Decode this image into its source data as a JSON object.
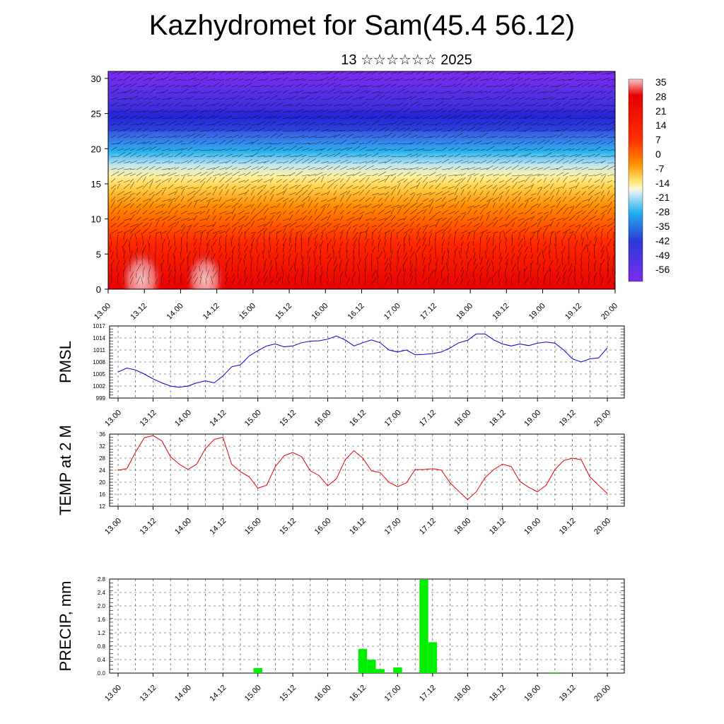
{
  "header": {
    "title": "Kazhydromet for Sam(45.4 56.12)",
    "subtitle": "13 ☆☆☆☆☆☆ 2025"
  },
  "time_labels": [
    "13.00",
    "13.12",
    "14.00",
    "14.12",
    "15.00",
    "15.12",
    "16.00",
    "16.12",
    "17.00",
    "17.12",
    "18.00",
    "18.12",
    "19.00",
    "19.12",
    "20.00"
  ],
  "chart_data": [
    {
      "type": "heatmap",
      "title": "",
      "x_categories": [
        "13.00",
        "13.12",
        "14.00",
        "14.12",
        "15.00",
        "15.12",
        "16.00",
        "16.12",
        "17.00",
        "17.12",
        "18.00",
        "18.12",
        "19.00",
        "19.12",
        "20.00"
      ],
      "yticks": [
        0,
        5,
        10,
        15,
        20,
        25,
        30
      ],
      "ylim": [
        0,
        31
      ],
      "colorbar_labels": [
        "35",
        "28",
        "21",
        "14",
        "7",
        "0",
        "-7",
        "-14",
        "-21",
        "-28",
        "-35",
        "-42",
        "-49",
        "-56"
      ],
      "colors": {
        "hot": "#f8b6b6",
        "red": "#e30000",
        "orange": "#ff7a00",
        "yellow": "#ffe36b",
        "lightblue": "#b9e2f3",
        "cyan": "#20b2f0",
        "blue": "#2a3bd6",
        "purple": "#7a2af0"
      },
      "overlay": "wind barbs"
    },
    {
      "type": "line",
      "ylabel": "PMSL",
      "yticks": [
        999,
        1002,
        1005,
        1008,
        1011,
        1014,
        1017
      ],
      "ylim": [
        999,
        1017
      ],
      "color": "#0000cc",
      "x": [
        0,
        0.25,
        0.5,
        0.75,
        1,
        1.25,
        1.5,
        1.75,
        2,
        2.25,
        2.5,
        2.75,
        3,
        3.25,
        3.5,
        3.75,
        4,
        4.25,
        4.5,
        4.75,
        5,
        5.25,
        5.5,
        5.75,
        6,
        6.25,
        6.5,
        6.75,
        7,
        7.25,
        7.5,
        7.75,
        8,
        8.25,
        8.5,
        8.75,
        9,
        9.25,
        9.5,
        9.75,
        10,
        10.25,
        10.5,
        10.75,
        11,
        11.25,
        11.5,
        11.75,
        12,
        12.25,
        12.5,
        12.75,
        13,
        13.25,
        13.5,
        13.75,
        14
      ],
      "values": [
        1005.5,
        1006.5,
        1006,
        1005,
        1003.8,
        1002.8,
        1002,
        1001.7,
        1002,
        1002.8,
        1003.3,
        1002.8,
        1004.5,
        1006.8,
        1007.3,
        1009.5,
        1010.8,
        1012,
        1012.5,
        1011.8,
        1012,
        1012.8,
        1013.2,
        1013.3,
        1013.7,
        1014.5,
        1013.5,
        1012,
        1012.8,
        1013.5,
        1012.8,
        1011,
        1010.5,
        1011,
        1009.8,
        1009.9,
        1010.1,
        1010.5,
        1011.5,
        1012.8,
        1013.4,
        1015,
        1015,
        1013.5,
        1012.5,
        1012,
        1012.5,
        1012.1,
        1012.7,
        1013,
        1012.7,
        1011,
        1008.8,
        1008,
        1008.8,
        1009,
        1011.5
      ]
    },
    {
      "type": "line",
      "ylabel": "TEMP at 2 M",
      "yticks": [
        12,
        16,
        20,
        24,
        28,
        32,
        36
      ],
      "ylim": [
        12,
        36
      ],
      "color": "#e60000",
      "x": [
        0,
        0.25,
        0.5,
        0.75,
        1,
        1.25,
        1.5,
        1.75,
        2,
        2.25,
        2.5,
        2.75,
        3,
        3.25,
        3.5,
        3.75,
        4,
        4.25,
        4.5,
        4.75,
        5,
        5.25,
        5.5,
        5.75,
        6,
        6.25,
        6.5,
        6.75,
        7,
        7.25,
        7.5,
        7.75,
        8,
        8.25,
        8.5,
        8.75,
        9,
        9.25,
        9.5,
        9.75,
        10,
        10.25,
        10.5,
        10.75,
        11,
        11.25,
        11.5,
        11.75,
        12,
        12.25,
        12.5,
        12.75,
        13,
        13.25,
        13.5,
        13.75,
        14
      ],
      "values": [
        24,
        24.5,
        30,
        34.8,
        35.5,
        33.8,
        28.5,
        26,
        24.2,
        26,
        31.2,
        34.2,
        35,
        26,
        23.5,
        21.8,
        18,
        19,
        25.2,
        28.8,
        29.9,
        28.5,
        23.8,
        22.2,
        18.8,
        21.2,
        27.5,
        30.5,
        28,
        23.8,
        23.2,
        20,
        18.5,
        19.8,
        24.2,
        24.2,
        24.5,
        24,
        19.8,
        17,
        14.2,
        16.8,
        21.5,
        24.2,
        26,
        25.2,
        20.2,
        18.3,
        16.8,
        19,
        24.2,
        27.2,
        28,
        27.5,
        21.8,
        19,
        16.2
      ]
    },
    {
      "type": "bar",
      "ylabel": "PRECIP, mm",
      "yticks": [
        0.0,
        0.4,
        0.8,
        1.2,
        1.6,
        2.0,
        2.4,
        2.8
      ],
      "ytick_labels": [
        "0.0",
        "0.4",
        "0.8",
        "1.2",
        "1.6",
        "2.0",
        "2.4",
        "2.8"
      ],
      "ylim": [
        0,
        2.8
      ],
      "color": "#00ee00",
      "bars": [
        {
          "t": 4.0,
          "value": 0.15
        },
        {
          "t": 7.0,
          "value": 0.72
        },
        {
          "t": 7.25,
          "value": 0.4
        },
        {
          "t": 7.5,
          "value": 0.12
        },
        {
          "t": 8.0,
          "value": 0.17
        },
        {
          "t": 8.75,
          "value": 2.78
        },
        {
          "t": 9.0,
          "value": 0.92
        },
        {
          "t": 12.5,
          "value": 0.02
        }
      ]
    }
  ]
}
